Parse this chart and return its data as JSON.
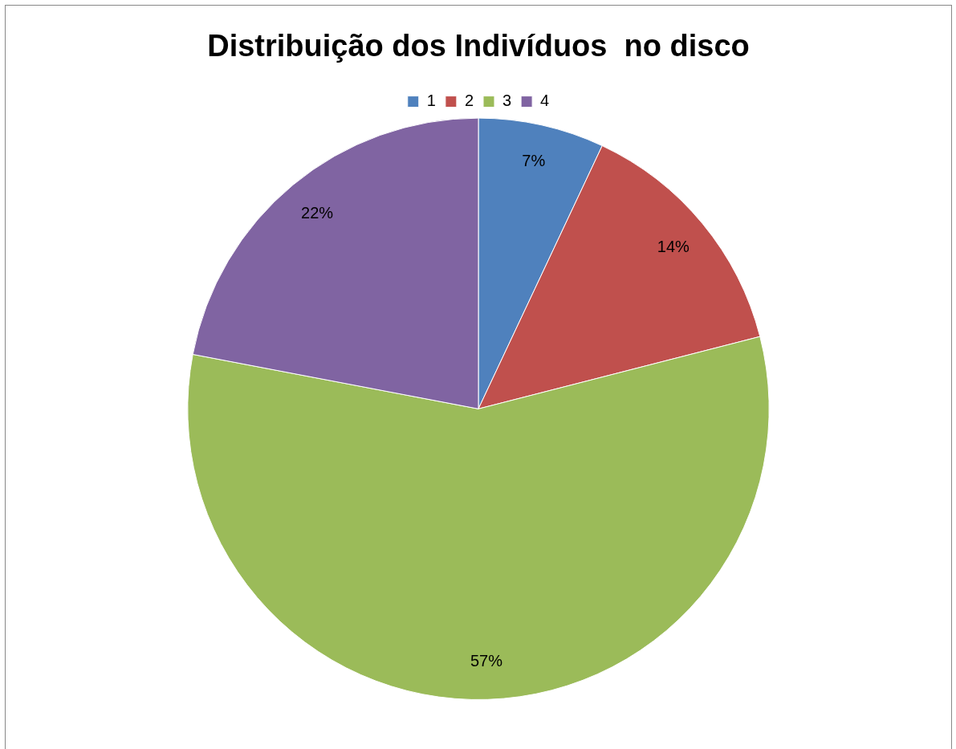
{
  "chart_data": {
    "type": "pie",
    "title": "Distribuição dos Indivíduos  no disco",
    "categories": [
      "1",
      "2",
      "3",
      "4"
    ],
    "values": [
      7,
      14,
      57,
      22
    ],
    "colors": [
      "#4f81bd",
      "#c0504d",
      "#9bbb59",
      "#8064a2"
    ],
    "value_labels": [
      "7%",
      "14%",
      "57%",
      "22%"
    ],
    "legend": "top"
  }
}
